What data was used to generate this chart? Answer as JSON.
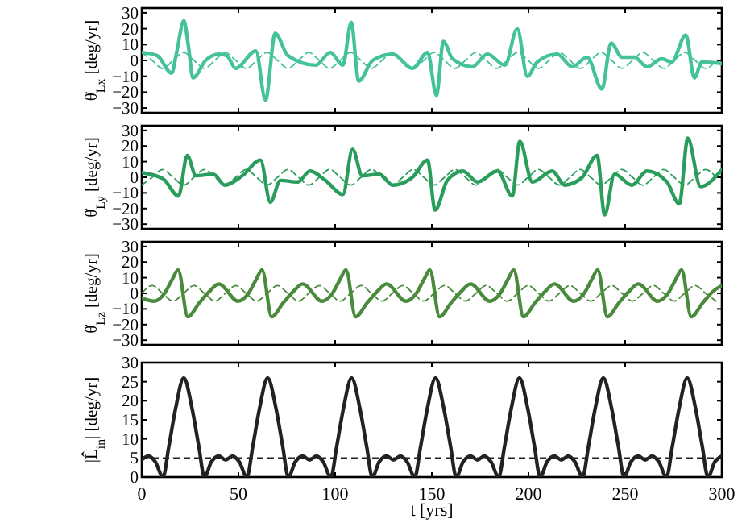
{
  "chart_data": [
    {
      "type": "line",
      "ylabel": "θ̇$_{Lx}$ [deg/yr]",
      "xlim": [
        0,
        300
      ],
      "xticks": [
        0,
        50,
        100,
        150,
        200,
        250,
        300
      ],
      "ylim": [
        -33,
        33
      ],
      "yticks": [
        -30,
        -20,
        -10,
        0,
        10,
        20,
        30
      ],
      "tick_labels": "y",
      "grid": false,
      "series": [
        {
          "color": "#45c29c",
          "line_style": "solid",
          "x": [
            0,
            8,
            15.5,
            18,
            21.8,
            24,
            26.5,
            33,
            40,
            44,
            48.5,
            59,
            64,
            69,
            75.6,
            90,
            97.5,
            104,
            108.3,
            112.2,
            119.4,
            129.7,
            140,
            147.8,
            152.4,
            156,
            160.7,
            171,
            178.7,
            187.8,
            194.2,
            199.4,
            204.5,
            214.8,
            222.6,
            230.3,
            238,
            242.7,
            248.4,
            254.8,
            261.3,
            269,
            274,
            281.4,
            285.8,
            289.7,
            300
          ],
          "values": [
            5,
            3,
            -8,
            5,
            25,
            10,
            -11,
            0,
            4,
            3,
            -5,
            6,
            -25,
            17,
            3,
            -3,
            5,
            -3,
            24,
            -13,
            0,
            4,
            -5,
            5,
            -22,
            12,
            1,
            -4,
            4,
            -3,
            20,
            -10,
            -1,
            4,
            -4,
            2,
            -18,
            11,
            2,
            2,
            -4,
            1,
            -1,
            16,
            -11,
            -1,
            -2
          ]
        },
        {
          "color": "#45c29c",
          "line_style": "dashed",
          "x": [
            0,
            5.4,
            10.8,
            16.2,
            21.6,
            27,
            32.4,
            37.8,
            43.2,
            48.6,
            54,
            59.4,
            64.8,
            70.2,
            75.6,
            81,
            86.4,
            91.8,
            97.2,
            102.6,
            108,
            113.4,
            118.8,
            124.2,
            129.6,
            135,
            140.4,
            145.8,
            151.2,
            156.6,
            162,
            167.4,
            172.8,
            178.2,
            183.6,
            189,
            194.4,
            199.8,
            205.2,
            210.6,
            216,
            221.4,
            226.8,
            232.2,
            237.6,
            243,
            248.4,
            253.8,
            259.2,
            264.6,
            270,
            275.4,
            280.8,
            286.2,
            291.6,
            297
          ],
          "values": [
            5,
            0,
            -5,
            0,
            5,
            0,
            -5,
            0,
            5,
            0,
            -5,
            0,
            5,
            0,
            -5,
            0,
            5,
            0,
            -5,
            0,
            5,
            0,
            -5,
            0,
            5,
            0,
            -5,
            0,
            5,
            0,
            -5,
            0,
            5,
            0,
            -5,
            0,
            5,
            0,
            -5,
            0,
            5,
            0,
            -5,
            0,
            5,
            0,
            -5,
            0,
            5,
            0,
            -5,
            0,
            5,
            0,
            -5,
            0
          ]
        }
      ]
    },
    {
      "type": "line",
      "ylabel": "θ̇$_{Ly}$ [deg/yr]",
      "xlim": [
        0,
        300
      ],
      "xticks": [
        0,
        50,
        100,
        150,
        200,
        250,
        300
      ],
      "ylim": [
        -33,
        33
      ],
      "yticks": [
        -30,
        -20,
        -10,
        0,
        10,
        20,
        30
      ],
      "tick_labels": "y",
      "grid": false,
      "series": [
        {
          "color": "#2a9d5c",
          "line_style": "solid",
          "x": [
            0,
            11,
            19,
            23.5,
            28,
            37,
            43,
            52,
            61.4,
            66.5,
            71.7,
            80.7,
            87,
            95,
            104,
            109,
            114,
            123,
            129.7,
            140,
            147.8,
            151.7,
            158,
            166,
            173.6,
            184,
            191.6,
            195.5,
            202,
            212.3,
            218.7,
            227.8,
            235.5,
            239.4,
            244.5,
            253.5,
            261.3,
            271.6,
            278,
            282.4,
            289,
            300
          ],
          "values": [
            3,
            -1,
            -12,
            14,
            1,
            2,
            -5,
            1,
            11,
            -16,
            -2,
            -3,
            4,
            -2,
            -11,
            18,
            1,
            2,
            -5,
            0,
            11,
            -21,
            -2,
            4,
            -3,
            4,
            -12,
            23,
            -3,
            4,
            -5,
            0,
            14,
            -24,
            2,
            -5,
            4,
            -3,
            -17,
            25,
            -6,
            5
          ]
        },
        {
          "color": "#2a9d5c",
          "line_style": "dashed",
          "x": [
            0,
            5.4,
            10.8,
            16.2,
            21.6,
            27,
            32.4,
            37.8,
            43.2,
            48.6,
            54,
            59.4,
            64.8,
            70.2,
            75.6,
            81,
            86.4,
            91.8,
            97.2,
            102.6,
            108,
            113.4,
            118.8,
            124.2,
            129.6,
            135,
            140.4,
            145.8,
            151.2,
            156.6,
            162,
            167.4,
            172.8,
            178.2,
            183.6,
            189,
            194.4,
            199.8,
            205.2,
            210.6,
            216,
            221.4,
            226.8,
            232.2,
            237.6,
            243,
            248.4,
            253.8,
            259.2,
            264.6,
            270,
            275.4,
            280.8,
            286.2,
            291.6,
            297
          ],
          "values": [
            -5,
            0,
            5,
            0,
            -5,
            0,
            5,
            0,
            -5,
            0,
            5,
            0,
            -5,
            0,
            5,
            0,
            -5,
            0,
            5,
            0,
            -5,
            0,
            5,
            0,
            -5,
            0,
            5,
            0,
            -5,
            0,
            5,
            0,
            -5,
            0,
            5,
            0,
            -5,
            0,
            5,
            0,
            -5,
            0,
            5,
            0,
            -5,
            0,
            5,
            0,
            -5,
            0,
            5,
            0,
            -5,
            0,
            5,
            0
          ]
        }
      ]
    },
    {
      "type": "line",
      "ylabel": "θ̇$_{Lz}$ [deg/yr]",
      "xlim": [
        0,
        300
      ],
      "xticks": [
        0,
        50,
        100,
        150,
        200,
        250,
        300
      ],
      "ylim": [
        -33,
        33
      ],
      "yticks": [
        -30,
        -20,
        -10,
        0,
        10,
        20,
        30
      ],
      "tick_labels": "y",
      "grid": false,
      "series": [
        {
          "color": "#4a8a3c",
          "line_style": "solid",
          "x": [
            0,
            6.4,
            11.8,
            15.8,
            18.8,
            23.8,
            29.8,
            34.8,
            39.8,
            49.8,
            55.2,
            59.2,
            62.2,
            67.2,
            73.2,
            78.2,
            83.2,
            93.2,
            98.6,
            102.6,
            105.6,
            110.6,
            116.6,
            121.6,
            126.6,
            136.6,
            142,
            146,
            149,
            154,
            160,
            165,
            170,
            180,
            185.4,
            189.4,
            192.4,
            197.4,
            203.4,
            208.4,
            213.4,
            223.4,
            228.8,
            232.8,
            235.8,
            240.8,
            246.8,
            251.8,
            256.8,
            266.8,
            272.2,
            276.2,
            279.2,
            284.2,
            290.2,
            295.2,
            300
          ],
          "values": [
            -3,
            -5,
            0,
            9,
            15,
            -15,
            -6,
            1,
            6,
            -5,
            0,
            9,
            15,
            -15,
            -6,
            1,
            6,
            -5,
            0,
            9,
            15,
            -15,
            -6,
            1,
            6,
            -5,
            0,
            9,
            15,
            -15,
            -6,
            1,
            6,
            -5,
            0,
            9,
            15,
            -15,
            -6,
            1,
            6,
            -5,
            0,
            9,
            15,
            -15,
            -6,
            1,
            6,
            -5,
            0,
            9,
            15,
            -15,
            -6,
            1,
            5
          ]
        },
        {
          "color": "#4a8a3c",
          "line_style": "dashed",
          "x": [
            0,
            5.4,
            10.8,
            16.2,
            21.6,
            27,
            32.4,
            37.8,
            43.2,
            48.6,
            54,
            59.4,
            64.8,
            70.2,
            75.6,
            81,
            86.4,
            91.8,
            97.2,
            102.6,
            108,
            113.4,
            118.8,
            124.2,
            129.6,
            135,
            140.4,
            145.8,
            151.2,
            156.6,
            162,
            167.4,
            172.8,
            178.2,
            183.6,
            189,
            194.4,
            199.8,
            205.2,
            210.6,
            216,
            221.4,
            226.8,
            232.2,
            237.6,
            243,
            248.4,
            253.8,
            259.2,
            264.6,
            270,
            275.4,
            280.8,
            286.2,
            291.6,
            297
          ],
          "values": [
            0,
            5,
            0,
            -5,
            0,
            5,
            0,
            -5,
            0,
            5,
            0,
            -5,
            0,
            5,
            0,
            -5,
            0,
            5,
            0,
            -5,
            0,
            5,
            0,
            -5,
            0,
            5,
            0,
            -5,
            0,
            5,
            0,
            -5,
            0,
            5,
            0,
            -5,
            0,
            5,
            0,
            -5,
            0,
            5,
            0,
            -5,
            0,
            5,
            0,
            -5,
            0,
            5,
            0,
            -5,
            0,
            5,
            0,
            -5
          ]
        }
      ]
    },
    {
      "type": "line",
      "ylabel": "|L̂̇$_{in}$| [deg/yr]",
      "xlabel": "t [yrs]",
      "xlim": [
        0,
        300
      ],
      "xticks": [
        0,
        50,
        100,
        150,
        200,
        250,
        300
      ],
      "ylim": [
        0,
        30
      ],
      "yticks": [
        0,
        5,
        10,
        15,
        20,
        25,
        30
      ],
      "grid": false,
      "ref_lines": [
        {
          "axis": "y",
          "value": 5,
          "color": "#222222",
          "line_style": "dashed"
        }
      ],
      "series": [
        {
          "color": "#222222",
          "line_style": "solid",
          "x": [
            0,
            3.5,
            7,
            11,
            14,
            17.5,
            21.7,
            26,
            29.5,
            32.4,
            36,
            39.9,
            43.4,
            46.9,
            50.4,
            54.4,
            57.4,
            60.9,
            65.1,
            69.4,
            72.9,
            75.8,
            79.4,
            83.3,
            86.8,
            90.3,
            93.8,
            97.8,
            100.8,
            104.3,
            108.5,
            112.8,
            116.3,
            119.2,
            122.8,
            126.7,
            130.2,
            133.7,
            137.2,
            141.2,
            144.2,
            147.7,
            151.9,
            156.2,
            159.7,
            162.6,
            166.2,
            170.1,
            173.6,
            177.1,
            180.6,
            184.6,
            187.6,
            191.1,
            195.3,
            199.6,
            203.1,
            206,
            209.6,
            213.5,
            217,
            220.5,
            224,
            228,
            231,
            234.5,
            238.7,
            243,
            246.5,
            249.4,
            253,
            256.9,
            260.4,
            263.9,
            267.4,
            271.4,
            274.4,
            277.9,
            282.1,
            286.4,
            289.9,
            292.8,
            296.4,
            300
          ],
          "values": [
            4.5,
            5.5,
            4,
            0,
            8,
            18,
            26,
            18,
            8,
            0,
            4,
            5.5,
            4.5,
            5.5,
            4,
            0,
            8,
            18,
            26,
            18,
            8,
            0,
            4,
            5.5,
            4.5,
            5.5,
            4,
            0,
            8,
            18,
            26,
            18,
            8,
            0,
            4,
            5.5,
            4.5,
            5.5,
            4,
            0,
            8,
            18,
            26,
            18,
            8,
            0,
            4,
            5.5,
            4.5,
            5.5,
            4,
            0,
            8,
            18,
            26,
            18,
            8,
            0,
            4,
            5.5,
            4.5,
            5.5,
            4,
            0,
            8,
            18,
            26,
            18,
            8,
            0,
            4,
            5.5,
            4.5,
            5.5,
            4,
            0,
            8,
            18,
            26,
            18,
            8,
            0,
            4,
            5.5
          ]
        }
      ]
    }
  ]
}
